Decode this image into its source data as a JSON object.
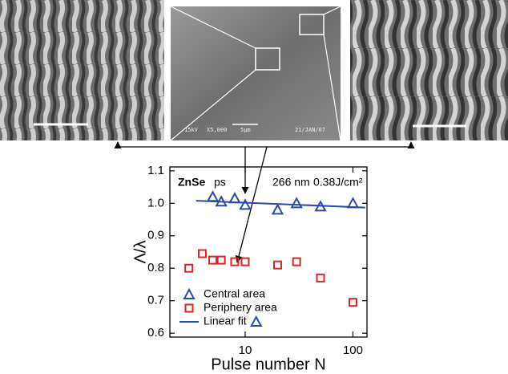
{
  "sem_image": {
    "labels": [
      "15kV",
      "X5,000",
      "5μm",
      "21/JAN/07"
    ]
  },
  "chart_data": {
    "type": "scatter",
    "annotations": [
      "ZnSe",
      "ps",
      "266 nm",
      "0.38J/cm²"
    ],
    "x_label": "Pulse number N",
    "y_label": "Λ/λ",
    "xscale": "log",
    "xlim": [
      2,
      135
    ],
    "xticks": [
      10,
      100
    ],
    "ylim": [
      0.588,
      1.112
    ],
    "yticks": [
      {
        "value": 0.6,
        "label": "0.6"
      },
      0.7,
      0.8,
      0.9,
      {
        "value": 1.0,
        "label": "1.0"
      },
      1.1
    ],
    "legend": "lower left",
    "series": [
      {
        "name": "Central area",
        "color": "#2b4ba8",
        "marker": "triangle",
        "x": [
          5,
          6,
          8,
          10,
          20,
          30,
          50,
          100
        ],
        "values": [
          1.02,
          1.005,
          1.015,
          0.995,
          0.98,
          1.0,
          0.99,
          1.0
        ]
      },
      {
        "name": "Periphery area",
        "color": "#e02424",
        "marker": "square",
        "x": [
          3,
          4,
          5,
          6,
          8,
          10,
          20,
          30,
          50,
          100
        ],
        "values": [
          0.8,
          0.845,
          0.825,
          0.825,
          0.82,
          0.82,
          0.81,
          0.82,
          0.77,
          0.695
        ]
      },
      {
        "name": "Linear fit",
        "color": "#2b4ba8",
        "marker": "line",
        "x": [
          3.5,
          130
        ],
        "values": [
          1.008,
          0.987
        ]
      }
    ]
  }
}
